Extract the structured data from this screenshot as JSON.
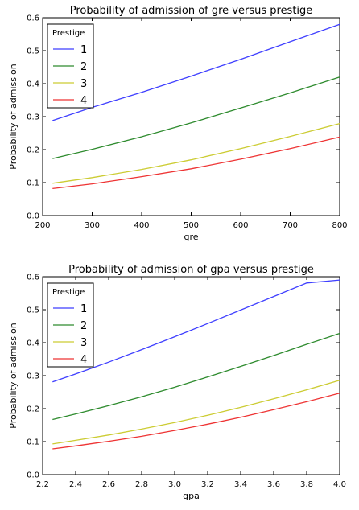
{
  "chart_data": [
    {
      "type": "line",
      "title": "Probability of admission of gre versus prestige",
      "xlabel": "gre",
      "ylabel": "Probability of admission",
      "xlim": [
        200,
        800
      ],
      "ylim": [
        0.0,
        0.6
      ],
      "xticks": [
        "200",
        "300",
        "400",
        "500",
        "600",
        "700",
        "800"
      ],
      "yticks": [
        "0.0",
        "0.1",
        "0.2",
        "0.3",
        "0.4",
        "0.5",
        "0.6"
      ],
      "grid": false,
      "legend_title": "Prestige",
      "legend_position": "top-left",
      "x": [
        220,
        300,
        400,
        500,
        600,
        700,
        800
      ],
      "series": [
        {
          "name": "1",
          "color": "#3f3fff",
          "values": [
            0.288,
            0.328,
            0.374,
            0.423,
            0.474,
            0.527,
            0.58
          ]
        },
        {
          "name": "2",
          "color": "#2e8b2e",
          "values": [
            0.173,
            0.201,
            0.239,
            0.281,
            0.326,
            0.372,
            0.42
          ]
        },
        {
          "name": "3",
          "color": "#cccc33",
          "values": [
            0.098,
            0.115,
            0.14,
            0.169,
            0.203,
            0.24,
            0.279
          ]
        },
        {
          "name": "4",
          "color": "#ee3333",
          "values": [
            0.082,
            0.096,
            0.118,
            0.142,
            0.171,
            0.203,
            0.238
          ]
        }
      ]
    },
    {
      "type": "line",
      "title": "Probability of admission of gpa versus prestige",
      "xlabel": "gpa",
      "ylabel": "Probability of admission",
      "xlim": [
        2.2,
        4.0
      ],
      "ylim": [
        0.0,
        0.6
      ],
      "xticks": [
        "2.2",
        "2.4",
        "2.6",
        "2.8",
        "3.0",
        "3.2",
        "3.4",
        "3.6",
        "3.8",
        "4.0"
      ],
      "yticks": [
        "0.0",
        "0.1",
        "0.2",
        "0.3",
        "0.4",
        "0.5",
        "0.6"
      ],
      "grid": false,
      "legend_title": "Prestige",
      "legend_position": "top-left",
      "x": [
        2.26,
        2.4,
        2.6,
        2.8,
        3.0,
        3.2,
        3.4,
        3.6,
        3.8,
        4.0
      ],
      "series": [
        {
          "name": "1",
          "color": "#3f3fff",
          "values": [
            0.281,
            0.305,
            0.341,
            0.379,
            0.418,
            0.458,
            0.499,
            0.54,
            0.581,
            0.59
          ]
        },
        {
          "name": "2",
          "color": "#2e8b2e",
          "values": [
            0.167,
            0.184,
            0.209,
            0.236,
            0.265,
            0.296,
            0.328,
            0.361,
            0.395,
            0.428
          ]
        },
        {
          "name": "3",
          "color": "#cccc33",
          "values": [
            0.093,
            0.104,
            0.12,
            0.138,
            0.158,
            0.18,
            0.204,
            0.23,
            0.257,
            0.286
          ]
        },
        {
          "name": "4",
          "color": "#ee3333",
          "values": [
            0.078,
            0.087,
            0.101,
            0.116,
            0.134,
            0.153,
            0.174,
            0.197,
            0.221,
            0.247
          ]
        }
      ]
    }
  ]
}
